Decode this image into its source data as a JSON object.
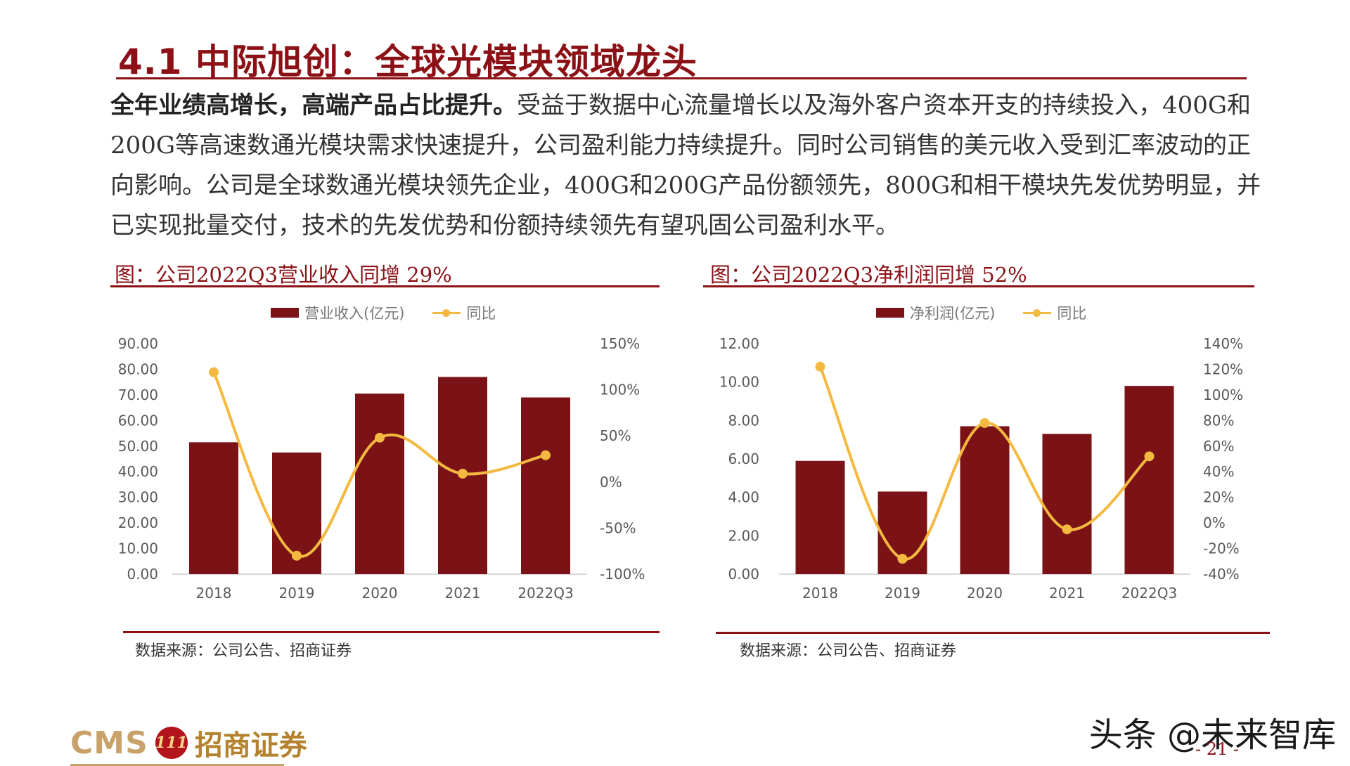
{
  "page": {
    "title": "4.1  中际旭创：全球光模块领域龙头",
    "lead": "全年业绩高增长，高端产品占比提升。",
    "body": "受益于数据中心流量增长以及海外客户资本开支的持续投入，400G和200G等高速数通光模块需求快速提升，公司盈利能力持续提升。同时公司销售的美元收入受到汇率波动的正向影响。公司是全球数通光模块领先企业，400G和200G产品份额领先，800G和相干模块先发优势明显，并已实现批量交付，技术的先发优势和份额持续领先有望巩固公司盈利水平。",
    "page_number": "- 21 -",
    "watermark": "头条 @未来智库",
    "logo": {
      "cms": "CMS",
      "badge": "111",
      "cn": "招商证券"
    },
    "colors": {
      "bar": "#7b1216",
      "line": "#f4b940",
      "accent": "#8b1116"
    }
  },
  "charts": [
    {
      "caption": "图：公司2022Q3营业收入同增 29%",
      "source": "数据来源：公司公告、招商证券",
      "legend_bar": "营业收入(亿元)",
      "legend_line": "同比"
    },
    {
      "caption": "图：公司2022Q3净利润同增 52%",
      "source": "数据来源：公司公告、招商证券",
      "legend_bar": "净利润(亿元)",
      "legend_line": "同比"
    }
  ],
  "chart_data": [
    {
      "type": "bar",
      "categories": [
        "2018",
        "2019",
        "2020",
        "2021",
        "2022Q3"
      ],
      "series": [
        {
          "name": "营业收入(亿元)",
          "type": "bar",
          "axis": "left",
          "values": [
            51.5,
            47.5,
            70.5,
            77.0,
            69.0
          ]
        },
        {
          "name": "同比",
          "type": "line",
          "axis": "right",
          "values": [
            119,
            -80,
            48,
            9,
            29
          ],
          "unit": "%"
        }
      ],
      "ylim": [
        0,
        90
      ],
      "yticks": [
        "90.00",
        "80.00",
        "70.00",
        "60.00",
        "50.00",
        "40.00",
        "30.00",
        "20.00",
        "10.00",
        "0.00"
      ],
      "y2lim": [
        -100,
        150
      ],
      "y2ticks": [
        "150%",
        "100%",
        "50%",
        "0%",
        "-50%",
        "-100%"
      ],
      "legend": "top-center",
      "grid": false
    },
    {
      "type": "bar",
      "categories": [
        "2018",
        "2019",
        "2020",
        "2021",
        "2022Q3"
      ],
      "series": [
        {
          "name": "净利润(亿元)",
          "type": "bar",
          "axis": "left",
          "values": [
            5.9,
            4.3,
            7.7,
            7.3,
            9.8
          ]
        },
        {
          "name": "同比",
          "type": "line",
          "axis": "right",
          "values": [
            122,
            -28,
            78,
            -5,
            52
          ],
          "unit": "%"
        }
      ],
      "ylim": [
        0,
        12
      ],
      "yticks": [
        "12.00",
        "10.00",
        "8.00",
        "6.00",
        "4.00",
        "2.00",
        "0.00"
      ],
      "y2lim": [
        -40,
        140
      ],
      "y2ticks": [
        "140%",
        "120%",
        "100%",
        "80%",
        "60%",
        "40%",
        "20%",
        "0%",
        "-20%",
        "-40%"
      ],
      "legend": "top-center",
      "grid": false
    }
  ]
}
